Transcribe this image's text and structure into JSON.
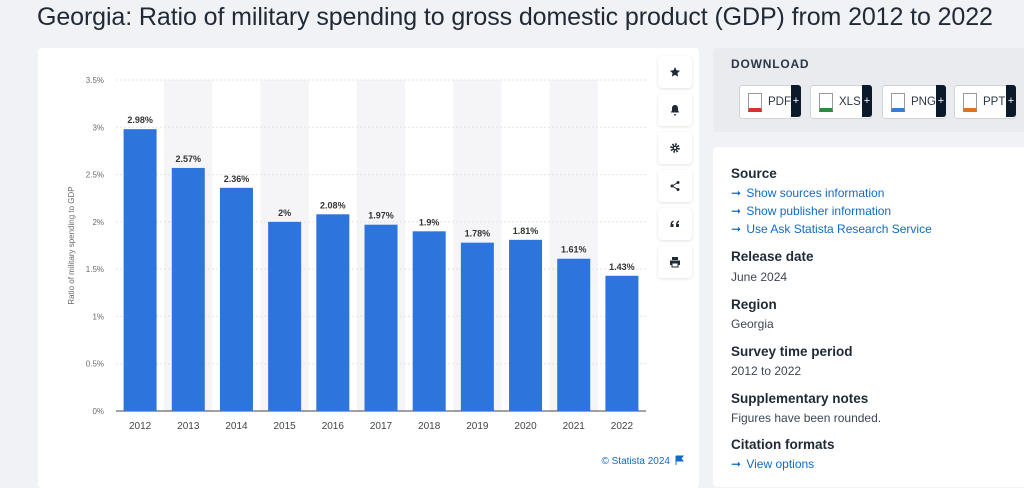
{
  "page": {
    "title": "Georgia: Ratio of military spending to gross domestic product (GDP) from 2012 to 2022"
  },
  "chart_data": {
    "type": "bar",
    "categories": [
      "2012",
      "2013",
      "2014",
      "2015",
      "2016",
      "2017",
      "2018",
      "2019",
      "2020",
      "2021",
      "2022"
    ],
    "values": [
      2.98,
      2.57,
      2.36,
      2.0,
      2.08,
      1.97,
      1.9,
      1.78,
      1.81,
      1.61,
      1.43
    ],
    "data_labels": [
      "2.98%",
      "2.57%",
      "2.36%",
      "2%",
      "2.08%",
      "1.97%",
      "1.9%",
      "1.78%",
      "1.81%",
      "1.61%",
      "1.43%"
    ],
    "ylabel": "Ratio of military spending to GDP",
    "xlabel": "",
    "ylim": [
      0,
      3.5
    ],
    "yticks": [
      0,
      0.5,
      1,
      1.5,
      2,
      2.5,
      3,
      3.5
    ],
    "ytick_labels": [
      "0%",
      "0.5%",
      "1%",
      "1.5%",
      "2%",
      "2.5%",
      "3%",
      "3.5%"
    ],
    "bar_color": "#2d74dc",
    "grid": true
  },
  "credit": "© Statista 2024",
  "toolbar": {
    "icons": [
      "star-icon",
      "bell-icon",
      "gear-icon",
      "share-icon",
      "quote-icon",
      "print-icon"
    ]
  },
  "download": {
    "title": "DOWNLOAD",
    "buttons": [
      {
        "label": "PDF",
        "color": "#d9302c"
      },
      {
        "label": "XLS",
        "color": "#2e8b3d"
      },
      {
        "label": "PNG",
        "color": "#3a7bd5"
      },
      {
        "label": "PPT",
        "color": "#e0711f"
      }
    ],
    "plus": "+"
  },
  "info": {
    "source_heading": "Source",
    "source_links": [
      "Show sources information",
      "Show publisher information",
      "Use Ask Statista Research Service"
    ],
    "release_heading": "Release date",
    "release_value": "June 2024",
    "region_heading": "Region",
    "region_value": "Georgia",
    "survey_heading": "Survey time period",
    "survey_value": "2012 to 2022",
    "notes_heading": "Supplementary notes",
    "notes_value": "Figures have been rounded.",
    "citation_heading": "Citation formats",
    "citation_link": "View options"
  },
  "link_arrow": "➞"
}
